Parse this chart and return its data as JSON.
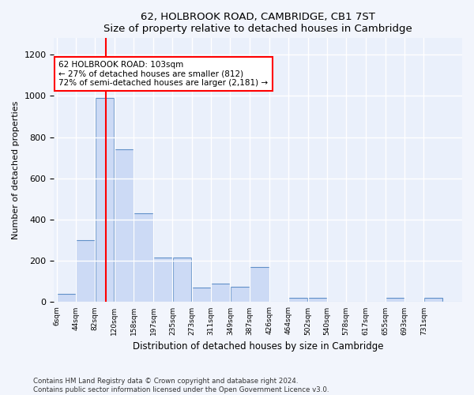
{
  "title": "62, HOLBROOK ROAD, CAMBRIDGE, CB1 7ST",
  "subtitle": "Size of property relative to detached houses in Cambridge",
  "xlabel": "Distribution of detached houses by size in Cambridge",
  "ylabel": "Number of detached properties",
  "footer_line1": "Contains HM Land Registry data © Crown copyright and database right 2024.",
  "footer_line2": "Contains public sector information licensed under the Open Government Licence v3.0.",
  "annotation_line1": "62 HOLBROOK ROAD: 103sqm",
  "annotation_line2": "← 27% of detached houses are smaller (812)",
  "annotation_line3": "72% of semi-detached houses are larger (2,181) →",
  "bar_color": "#ccdaf5",
  "bar_edge_color": "#6090c8",
  "red_line_x": 103,
  "bins": [
    6,
    44,
    82,
    120,
    158,
    197,
    235,
    273,
    311,
    349,
    387,
    426,
    464,
    502,
    540,
    578,
    617,
    655,
    693,
    731,
    769
  ],
  "counts": [
    40,
    300,
    990,
    740,
    430,
    215,
    215,
    70,
    90,
    75,
    170,
    0,
    20,
    20,
    0,
    0,
    0,
    20,
    0,
    20,
    0
  ],
  "ylim": [
    0,
    1280
  ],
  "yticks": [
    0,
    200,
    400,
    600,
    800,
    1000,
    1200
  ],
  "background_color": "#f2f5fc",
  "plot_bg_color": "#eaf0fb"
}
